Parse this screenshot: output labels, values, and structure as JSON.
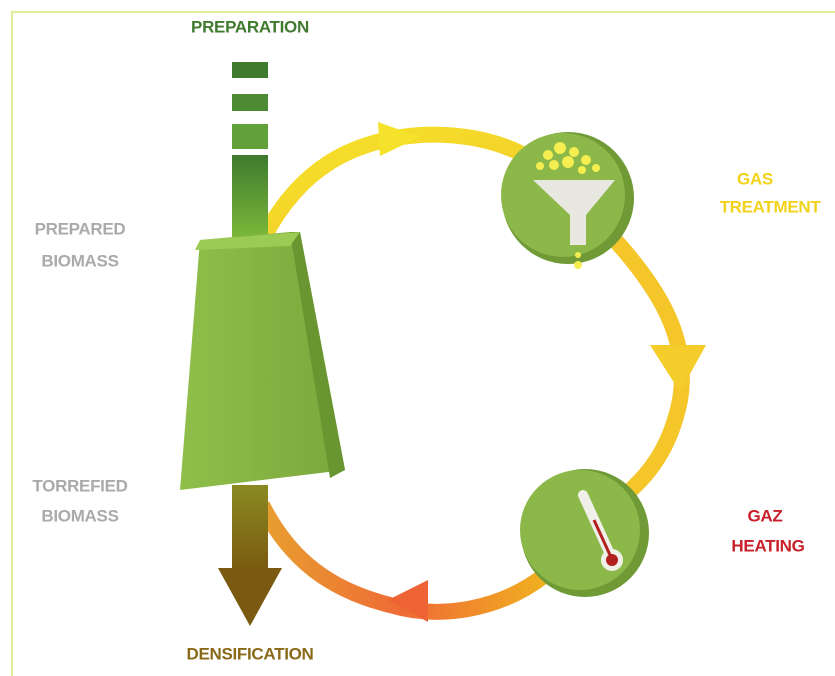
{
  "title": "PREPARATION",
  "bottom_label": "DENSIFICATION",
  "prepared_biomass": [
    "PREPARED",
    "BIOMASS"
  ],
  "torrefied_biomass": [
    "TORREFIED",
    "BIOMASS"
  ],
  "gas_treatment": [
    "GAS",
    "TREATMENT"
  ],
  "gaz_heating": [
    "GAZ",
    "HEATING"
  ]
}
